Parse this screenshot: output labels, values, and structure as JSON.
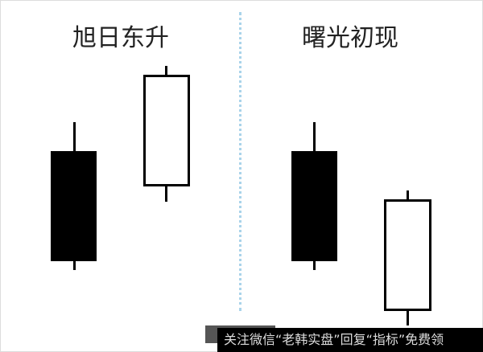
{
  "titles": {
    "left": "旭日东升",
    "right": "曙光初现"
  },
  "colors": {
    "bearish": "#000000",
    "bullish": "#ffffff",
    "divider": "#a9d3ea"
  },
  "watermark": "关注微信“老韩实盘”回复“指标”免费领"
}
